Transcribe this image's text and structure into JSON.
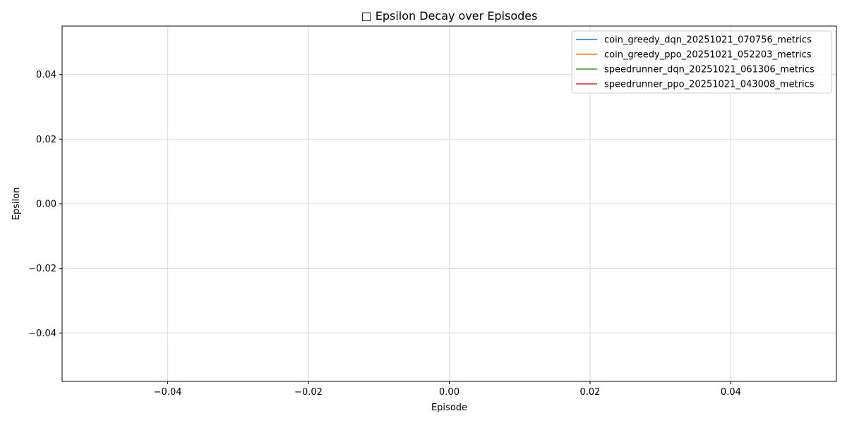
{
  "chart_data": {
    "type": "line",
    "title": "□ Epsilon Decay over Episodes",
    "xlabel": "Episode",
    "ylabel": "Epsilon",
    "xlim": [
      -0.055,
      0.055
    ],
    "ylim": [
      -0.055,
      0.055
    ],
    "xticks": [
      -0.04,
      -0.02,
      0.0,
      0.02,
      0.04
    ],
    "yticks": [
      -0.04,
      -0.02,
      0.0,
      0.02,
      0.04
    ],
    "xtick_labels": [
      "−0.04",
      "−0.02",
      "0.00",
      "0.02",
      "0.04"
    ],
    "ytick_labels": [
      "−0.04",
      "−0.02",
      "0.00",
      "0.02",
      "0.04"
    ],
    "grid": true,
    "legend_position": "top-right",
    "series": [
      {
        "name": "coin_greedy_dqn_20251021_070756_metrics",
        "color": "#1f77b4",
        "x": [],
        "y": []
      },
      {
        "name": "coin_greedy_ppo_20251021_052203_metrics",
        "color": "#ff7f0e",
        "x": [],
        "y": []
      },
      {
        "name": "speedrunner_dqn_20251021_061306_metrics",
        "color": "#2ca02c",
        "x": [],
        "y": []
      },
      {
        "name": "speedrunner_ppo_20251021_043008_metrics",
        "color": "#d62728",
        "x": [],
        "y": []
      }
    ]
  }
}
